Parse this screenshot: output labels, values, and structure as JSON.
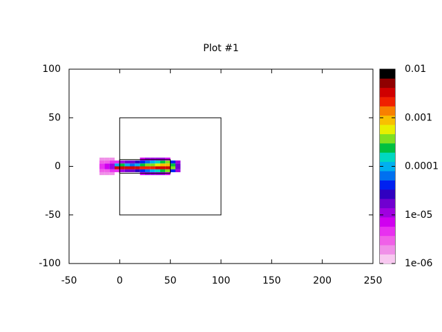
{
  "chart_data": {
    "type": "heatmap",
    "title": "Plot #1",
    "xlim": [
      -50,
      250
    ],
    "xticks": [
      -50,
      0,
      50,
      100,
      150,
      200,
      250
    ],
    "ylim": [
      -100,
      100
    ],
    "yticks": [
      -100,
      -50,
      0,
      50,
      100
    ],
    "x_edges": [
      -20,
      -15,
      -10,
      -5,
      0,
      5,
      10,
      15,
      20,
      25,
      30,
      35,
      40,
      45,
      50,
      55,
      60
    ],
    "y_edges": [
      -9,
      -6,
      -3,
      0,
      3,
      6,
      9
    ],
    "z": [
      [
        2e-06,
        2e-06,
        2e-06,
        null,
        null,
        null,
        null,
        null,
        8e-06,
        1e-05,
        1e-05,
        1e-05,
        1e-05,
        6e-06,
        null,
        null
      ],
      [
        3e-06,
        3e-06,
        4e-06,
        5e-06,
        1e-05,
        2e-05,
        2e-05,
        3e-05,
        4e-05,
        6e-05,
        0.0001,
        0.00015,
        0.0002,
        0.0003,
        5e-05,
        1e-05
      ],
      [
        5e-06,
        8e-06,
        1e-05,
        0.003,
        0.003,
        0.003,
        0.003,
        0.003,
        0.002,
        0.002,
        0.002,
        0.003,
        0.004,
        0.004,
        0.0003,
        2e-05
      ],
      [
        5e-06,
        8e-06,
        1e-05,
        0.0001,
        0.0002,
        0.0001,
        8e-05,
        0.0001,
        0.0002,
        0.0003,
        0.0004,
        0.0006,
        0.0008,
        0.001,
        0.0002,
        2e-05
      ],
      [
        3e-06,
        3e-06,
        4e-06,
        5e-06,
        1e-05,
        2e-05,
        2e-05,
        3e-05,
        4e-05,
        6e-05,
        0.0001,
        0.00015,
        0.0002,
        0.0003,
        5e-05,
        1e-05
      ],
      [
        2e-06,
        2e-06,
        2e-06,
        null,
        null,
        null,
        null,
        null,
        8e-06,
        1e-05,
        1e-05,
        1e-05,
        1e-05,
        6e-06,
        null,
        null
      ]
    ],
    "zlim": [
      1e-06,
      0.01
    ],
    "zlog": true,
    "zticks": [
      {
        "value": 1e-06,
        "label": "1e-06"
      },
      {
        "value": 1e-05,
        "label": "1e-05"
      },
      0.0001,
      0.001,
      0.01
    ],
    "palette": [
      "#f8c8f0",
      "#f090e8",
      "#f060e8",
      "#e830f0",
      "#d000f0",
      "#a000e0",
      "#7000d0",
      "#3000c0",
      "#0020f0",
      "#0070f0",
      "#00b0f0",
      "#00d8c0",
      "#00c040",
      "#80e020",
      "#e8f000",
      "#f8c000",
      "#f88000",
      "#f02000",
      "#d00000",
      "#900000",
      "#000000"
    ]
  }
}
